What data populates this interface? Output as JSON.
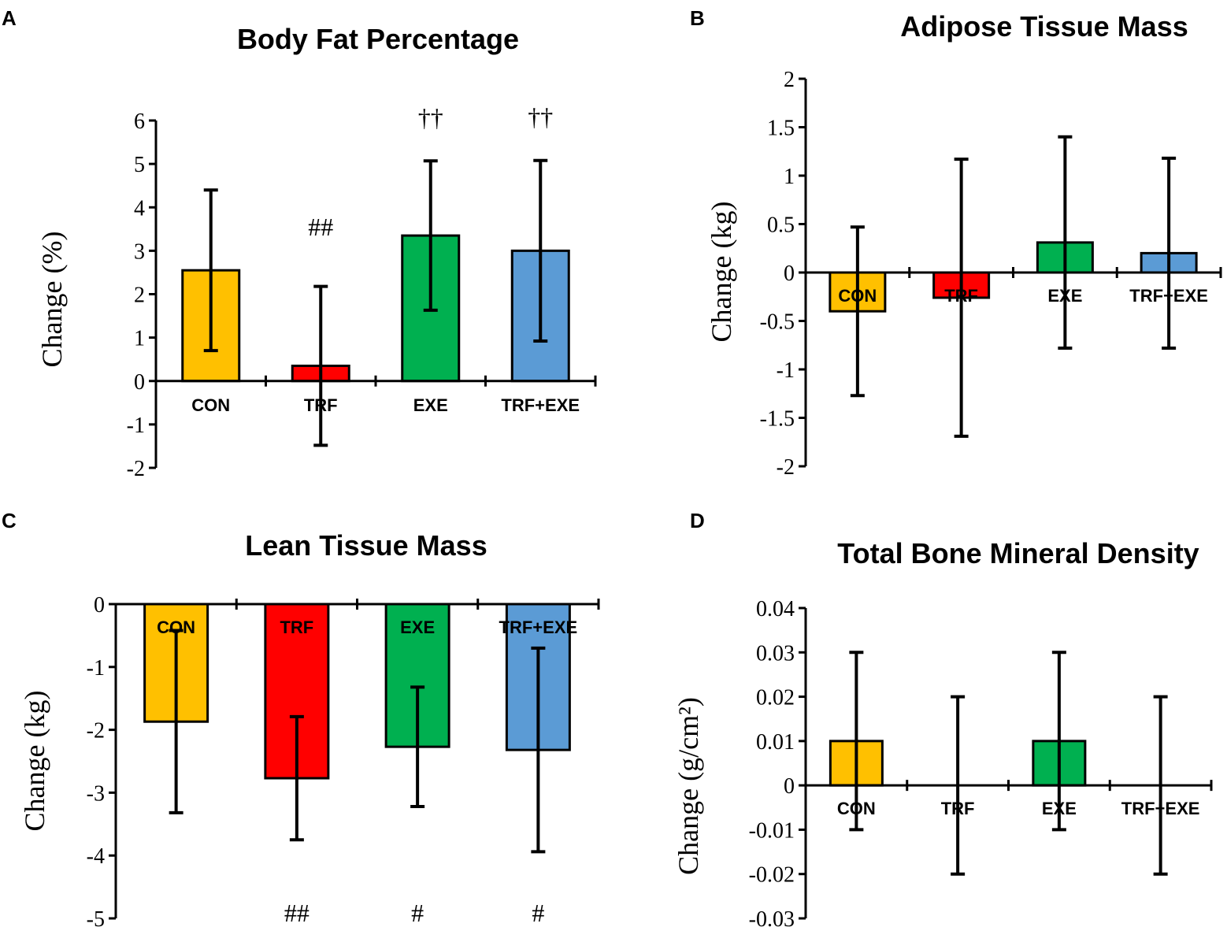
{
  "colors": {
    "CON": "#FFC000",
    "TRF": "#FF0000",
    "EXE": "#00B050",
    "TRF+EXE": "#5B9BD5"
  },
  "chart_data": [
    {
      "panel": "A",
      "type": "bar",
      "title": "Body Fat Percentage",
      "ylabel": "Change (%)",
      "xlabel": "",
      "categories": [
        "CON",
        "TRF",
        "EXE",
        "TRF+EXE"
      ],
      "values": [
        2.55,
        0.35,
        3.35,
        3.0
      ],
      "errors": [
        1.85,
        1.83,
        1.72,
        2.08
      ],
      "annotations": [
        "",
        "##",
        "††",
        "††"
      ],
      "ylim": [
        -2,
        6
      ],
      "yticks": [
        -2,
        -1,
        0,
        1,
        2,
        3,
        4,
        5,
        6
      ],
      "yticklabels": [
        "-2",
        "-1",
        "0",
        "1",
        "2",
        "3",
        "4",
        "5",
        "6"
      ]
    },
    {
      "panel": "B",
      "type": "bar",
      "title": "Adipose Tissue Mass",
      "ylabel": "Change (kg)",
      "xlabel": "",
      "categories": [
        "CON",
        "TRF",
        "EXE",
        "TRF+EXE"
      ],
      "values": [
        -0.4,
        -0.26,
        0.31,
        0.2
      ],
      "errors": [
        0.87,
        1.43,
        1.09,
        0.98
      ],
      "annotations": [
        "",
        "",
        "",
        ""
      ],
      "ylim": [
        -2,
        2
      ],
      "yticks": [
        -2,
        -1.5,
        -1,
        -0.5,
        0,
        0.5,
        1,
        1.5,
        2
      ],
      "yticklabels": [
        "-2",
        "-1.5",
        "-1",
        "-0.5",
        "0",
        "0.5",
        "1",
        "1.5",
        "2"
      ]
    },
    {
      "panel": "C",
      "type": "bar",
      "title": "Lean Tissue Mass",
      "ylabel": "Change (kg)",
      "xlabel": "",
      "categories": [
        "CON",
        "TRF",
        "EXE",
        "TRF+EXE"
      ],
      "values": [
        -1.87,
        -2.77,
        -2.27,
        -2.32
      ],
      "errors": [
        1.45,
        0.98,
        0.95,
        1.62
      ],
      "annotations": [
        "",
        "##",
        "#",
        "#"
      ],
      "ylim": [
        -5,
        0
      ],
      "yticks": [
        -5,
        -4,
        -3,
        -2,
        -1,
        0
      ],
      "yticklabels": [
        "-5",
        "-4",
        "-3",
        "-2",
        "-1",
        "0"
      ]
    },
    {
      "panel": "D",
      "type": "bar",
      "title": "Total Bone Mineral Density",
      "ylabel": "Change (g/cm²)",
      "xlabel": "",
      "categories": [
        "CON",
        "TRF",
        "EXE",
        "TRF+EXE"
      ],
      "values": [
        0.01,
        0.0,
        0.01,
        0.0
      ],
      "errors": [
        0.02,
        0.02,
        0.02,
        0.02
      ],
      "annotations": [
        "",
        "",
        "",
        ""
      ],
      "ylim": [
        -0.03,
        0.04
      ],
      "yticks": [
        -0.03,
        -0.02,
        -0.01,
        0,
        0.01,
        0.02,
        0.03,
        0.04
      ],
      "yticklabels": [
        "-0.03",
        "-0.02",
        "-0.01",
        "0",
        "0.01",
        "0.02",
        "0.03",
        "0.04"
      ]
    }
  ]
}
